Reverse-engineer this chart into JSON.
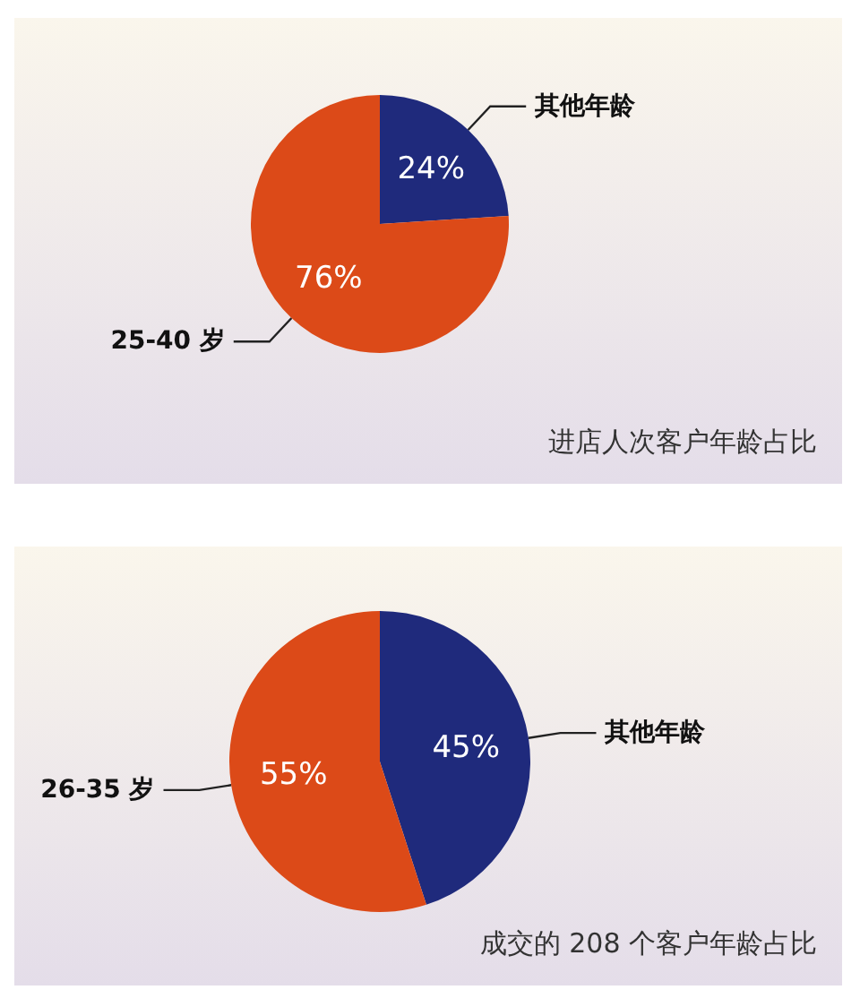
{
  "chart_data": [
    {
      "type": "pie",
      "title": "进店人次客户年龄占比",
      "categories": [
        "其他年龄",
        "25-40 岁"
      ],
      "values": [
        24,
        76
      ],
      "colors": [
        "#1f2a7c",
        "#dc4a18"
      ],
      "value_labels": [
        "24%",
        "76%"
      ],
      "legend": false
    },
    {
      "type": "pie",
      "title": "成交的 208 个客户年龄占比",
      "categories": [
        "其他年龄",
        "26-35 岁"
      ],
      "values": [
        45,
        55
      ],
      "colors": [
        "#1f2a7c",
        "#dc4a18"
      ],
      "value_labels": [
        "45%",
        "55%"
      ],
      "legend": false
    }
  ]
}
